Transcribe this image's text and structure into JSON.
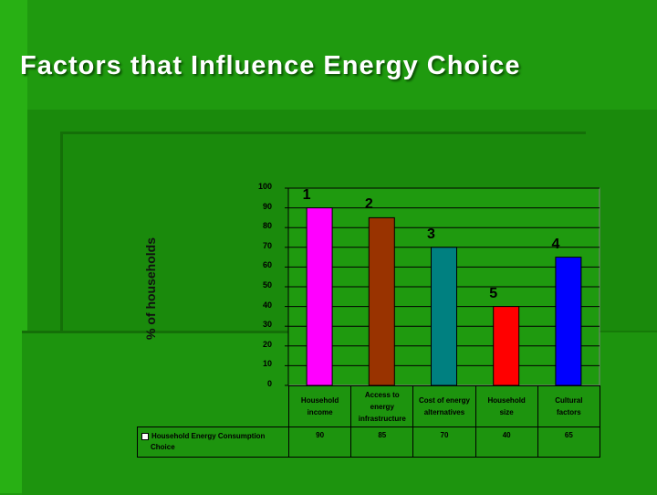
{
  "slide": {
    "title": "Factors that Influence Energy Choice"
  },
  "chart_data": {
    "type": "bar",
    "ylabel": "% of households",
    "ylim": [
      0,
      100
    ],
    "yticks": [
      0,
      10,
      20,
      30,
      40,
      50,
      60,
      70,
      80,
      90,
      100
    ],
    "categories": [
      "Household income",
      "Access to energy infrastructure",
      "Cost of energy alternatives",
      "Household size",
      "Cultural factors"
    ],
    "series": [
      {
        "name": "Household Energy Consumption Choice",
        "values": [
          90,
          85,
          70,
          40,
          65
        ]
      }
    ],
    "ranks": [
      "1",
      "2",
      "3",
      "5",
      "4"
    ],
    "colors": [
      "#ff00ff",
      "#993300",
      "#008080",
      "#ff0000",
      "#0000ff"
    ],
    "grid": true,
    "legend": "data-table"
  },
  "table": {
    "headers": [
      [
        "Household",
        "income"
      ],
      [
        "Access to",
        "energy",
        "infrastructure"
      ],
      [
        "Cost of energy",
        "alternatives"
      ],
      [
        "Household",
        "size"
      ],
      [
        "Cultural",
        "factors"
      ]
    ],
    "row_label": [
      "Household Energy Consumption",
      "Choice"
    ],
    "values": [
      "90",
      "85",
      "70",
      "40",
      "65"
    ]
  }
}
